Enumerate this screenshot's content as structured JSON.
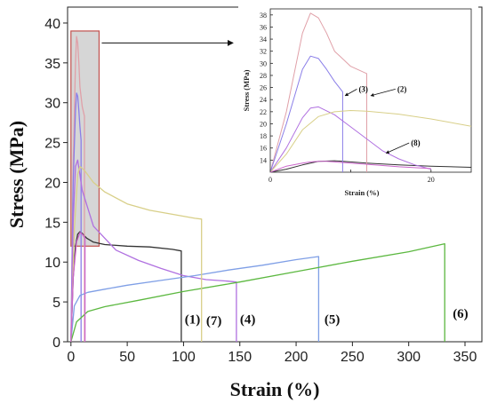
{
  "chart_data": [
    {
      "type": "line",
      "xlabel": "Strain (%)",
      "ylabel": "Stress (MPa)",
      "xlim": [
        -3,
        365
      ],
      "ylim": [
        0,
        42
      ],
      "xticks": [
        0,
        50,
        100,
        150,
        200,
        250,
        300,
        350
      ],
      "yticks": [
        0,
        5,
        10,
        15,
        20,
        25,
        30,
        35,
        40
      ],
      "series": [
        {
          "label": "(1)",
          "color": "#333333",
          "x": [
            0,
            2,
            4,
            6,
            8,
            10,
            14,
            20,
            30,
            50,
            70,
            90,
            98,
            98
          ],
          "y": [
            0,
            8,
            12,
            13.5,
            13.8,
            13.6,
            13.0,
            12.5,
            12.2,
            12.0,
            11.9,
            11.6,
            11.4,
            0
          ]
        },
        {
          "label": "(2)",
          "color": "#e0a0a8",
          "x": [
            0,
            2,
            4,
            5,
            6,
            7,
            8,
            10,
            12,
            12
          ],
          "y": [
            0,
            22,
            35,
            38.3,
            37.5,
            35,
            32,
            29.5,
            28.3,
            0
          ]
        },
        {
          "label": "(3)",
          "color": "#8a7ee8",
          "x": [
            0,
            2,
            4,
            5,
            6,
            7,
            8,
            9,
            9
          ],
          "y": [
            0,
            20,
            29,
            31.2,
            30.8,
            29,
            27,
            25.3,
            0
          ]
        },
        {
          "label": "(4)",
          "color": "#b070e0",
          "x": [
            0,
            2,
            4,
            6,
            10,
            20,
            40,
            60,
            80,
            100,
            120,
            140,
            147,
            147
          ],
          "y": [
            0,
            15,
            22,
            22.8,
            19,
            14.5,
            11.5,
            10.2,
            9.2,
            8.3,
            7.8,
            7.6,
            7.5,
            0
          ]
        },
        {
          "label": "(5)",
          "color": "#7f9fe6",
          "x": [
            0,
            3,
            8,
            15,
            30,
            50,
            80,
            110,
            140,
            170,
            200,
            220,
            220
          ],
          "y": [
            0,
            4.5,
            5.8,
            6.2,
            6.6,
            7.1,
            7.7,
            8.3,
            9.0,
            9.6,
            10.3,
            10.7,
            0
          ]
        },
        {
          "label": "(6)",
          "color": "#5cb840",
          "x": [
            0,
            5,
            15,
            30,
            60,
            100,
            150,
            200,
            250,
            300,
            332,
            332
          ],
          "y": [
            0,
            2.5,
            3.8,
            4.4,
            5.2,
            6.3,
            7.5,
            8.8,
            10.1,
            11.3,
            12.3,
            0
          ]
        },
        {
          "label": "(7)",
          "color": "#d8cf88",
          "x": [
            0,
            3,
            6,
            8,
            12,
            20,
            30,
            50,
            70,
            90,
            110,
            116,
            116
          ],
          "y": [
            0,
            14,
            21,
            22,
            21.5,
            20,
            18.8,
            17.3,
            16.5,
            16.0,
            15.5,
            15.4,
            0
          ]
        },
        {
          "label": "(8)",
          "color": "#cc66cc",
          "x": [
            0,
            2,
            5,
            8,
            10,
            12,
            12.5,
            12.5
          ],
          "y": [
            0,
            8,
            12.5,
            13.7,
            13.5,
            13.1,
            13.0,
            0
          ]
        }
      ],
      "curve_labels": [
        {
          "text": "(1)",
          "x": 108,
          "y": 2.3
        },
        {
          "text": "(7)",
          "x": 127,
          "y": 2.1
        },
        {
          "text": "(4)",
          "x": 157,
          "y": 2.3
        },
        {
          "text": "(5)",
          "x": 232,
          "y": 2.3
        },
        {
          "text": "(6)",
          "x": 346,
          "y": 3.0
        }
      ],
      "zoom_region": {
        "x": [
          0,
          25
        ],
        "y": [
          12,
          39
        ],
        "fill": "#cfcfcf",
        "edge": "#c0504d"
      }
    },
    {
      "type": "line",
      "inset": true,
      "xlabel": "Strain (%)",
      "ylabel": "Stress (MPa)",
      "xlim": [
        0,
        25
      ],
      "ylim": [
        12,
        39
      ],
      "xticks": [
        0,
        10,
        20
      ],
      "xtick_labels": [
        "0",
        "",
        "20"
      ],
      "yticks": [
        14,
        16,
        18,
        20,
        22,
        24,
        26,
        28,
        30,
        32,
        34,
        36,
        38
      ],
      "series": [
        {
          "label": "(1)",
          "color": "#333333",
          "x": [
            0,
            2,
            4,
            6,
            8,
            10,
            12,
            16,
            20,
            25
          ],
          "y": [
            12,
            12.5,
            13.2,
            13.8,
            13.9,
            13.7,
            13.5,
            13.2,
            13.0,
            12.8
          ]
        },
        {
          "label": "(2)",
          "color": "#e0a0a8",
          "x": [
            0,
            2,
            4,
            5,
            6,
            7,
            8,
            10,
            12,
            12
          ],
          "y": [
            12,
            22,
            35,
            38.3,
            37.5,
            35,
            32,
            29.5,
            28.3,
            12
          ]
        },
        {
          "label": "(3)",
          "color": "#8a7ee8",
          "x": [
            0,
            2,
            4,
            5,
            6,
            7,
            8,
            9,
            9
          ],
          "y": [
            12,
            20,
            29,
            31.2,
            30.8,
            29,
            27,
            25.3,
            12
          ]
        },
        {
          "label": "(4)",
          "color": "#b070e0",
          "x": [
            0,
            2,
            4,
            5,
            6,
            8,
            10,
            12,
            14,
            16,
            18,
            20
          ],
          "y": [
            12,
            16,
            21,
            22.6,
            22.8,
            21.5,
            19.5,
            17.5,
            15.5,
            14.2,
            13.2,
            12.5
          ]
        },
        {
          "label": "(7)",
          "color": "#d8cf88",
          "x": [
            0,
            2,
            4,
            6,
            8,
            10,
            12,
            16,
            20,
            25
          ],
          "y": [
            12,
            15,
            19,
            21.2,
            22.0,
            22.2,
            22.1,
            21.6,
            20.8,
            19.6
          ]
        },
        {
          "label": "(8)",
          "color": "#cc66cc",
          "x": [
            0,
            2,
            4,
            5,
            6,
            7,
            8,
            10,
            12,
            14,
            16,
            20
          ],
          "y": [
            12,
            13.0,
            13.5,
            13.7,
            13.8,
            13.8,
            13.7,
            13.5,
            13.3,
            13.1,
            12.9,
            12.6
          ]
        }
      ],
      "annotations": [
        {
          "text": "(3)",
          "x": 11,
          "y": 25.3,
          "arrow_to": [
            9.1,
            24.8
          ]
        },
        {
          "text": "(2)",
          "x": 15.8,
          "y": 25.3,
          "arrow_to": [
            12.3,
            24.8
          ]
        },
        {
          "text": "(8)",
          "x": 17.5,
          "y": 16.4,
          "arrow_to": [
            14.2,
            15.3
          ]
        }
      ]
    }
  ]
}
